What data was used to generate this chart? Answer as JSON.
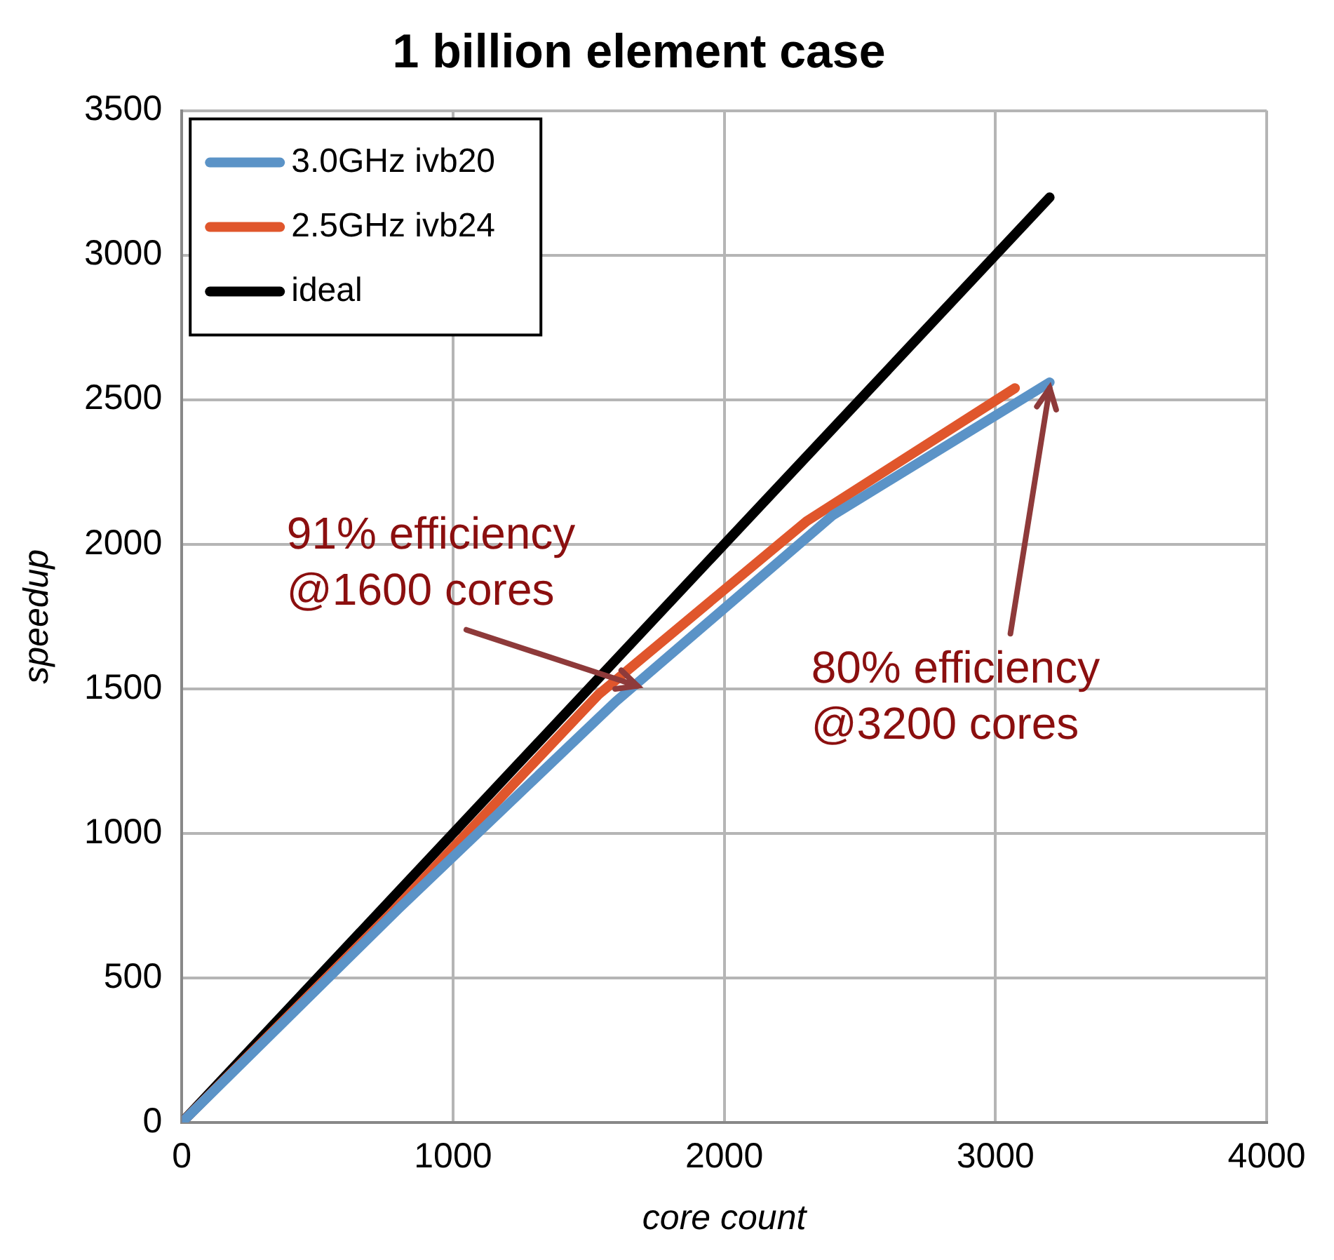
{
  "chart_data": {
    "type": "line",
    "title": "1 billion element case",
    "xlabel": "core count",
    "ylabel": "speedup",
    "xlim": [
      0,
      4000
    ],
    "xticks": [
      0,
      1000,
      2000,
      3000,
      4000
    ],
    "ylim": [
      0,
      3500
    ],
    "yticks": [
      0,
      500,
      1000,
      1500,
      2000,
      2500,
      3000,
      3500
    ],
    "grid": true,
    "legend": "top left",
    "marker": "none",
    "line_style": "solid",
    "series": [
      {
        "name": "3.0GHz ivb20",
        "color": "#5b93c7",
        "x": [
          0,
          800,
          1600,
          2400,
          3200
        ],
        "values": [
          0,
          740,
          1456,
          2100,
          2560
        ]
      },
      {
        "name": "2.5GHz ivb24",
        "color": "#e0562c",
        "x": [
          0,
          768,
          1536,
          2304,
          3072
        ],
        "values": [
          0,
          720,
          1480,
          2080,
          2540
        ]
      },
      {
        "name": "ideal",
        "color": "#000000",
        "x": [
          0,
          3200
        ],
        "values": [
          0,
          3200
        ]
      }
    ],
    "annotations": [
      {
        "text": "91% efficiency\n@1600 cores",
        "x": 1680,
        "y": 1510
      },
      {
        "text": "80% efficiency\n@3200 cores",
        "x": 3200,
        "y": 2540
      }
    ]
  }
}
